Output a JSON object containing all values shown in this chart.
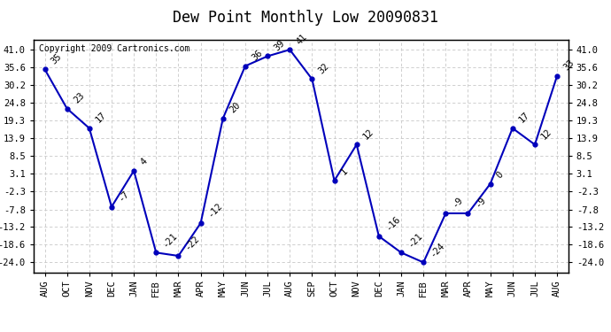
{
  "title": "Dew Point Monthly Low 20090831",
  "copyright": "Copyright 2009 Cartronics.com",
  "categories": [
    "AUG",
    "OCT",
    "NOV",
    "DEC",
    "JAN",
    "FEB",
    "MAR",
    "APR",
    "MAY",
    "JUN",
    "JUL",
    "AUG",
    "SEP",
    "OCT",
    "NOV",
    "DEC",
    "JAN",
    "FEB",
    "MAR",
    "APR",
    "MAY",
    "JUN",
    "JUL",
    "AUG"
  ],
  "values": [
    35,
    23,
    17,
    -7,
    4,
    -21,
    -22,
    -12,
    20,
    36,
    39,
    41,
    32,
    1,
    12,
    -16,
    -21,
    -24,
    -9,
    -9,
    0,
    17,
    12,
    33
  ],
  "line_color": "#0000bb",
  "marker_color": "#0000bb",
  "bg_color": "#ffffff",
  "grid_color": "#c8c8c8",
  "ylim_min": -27,
  "ylim_max": 44,
  "yticks": [
    41.0,
    35.6,
    30.2,
    24.8,
    19.3,
    13.9,
    8.5,
    3.1,
    -2.3,
    -7.8,
    -13.2,
    -18.6,
    -24.0
  ],
  "title_fontsize": 12,
  "copyright_fontsize": 7,
  "label_fontsize": 7.5,
  "tick_fontsize": 7.5
}
